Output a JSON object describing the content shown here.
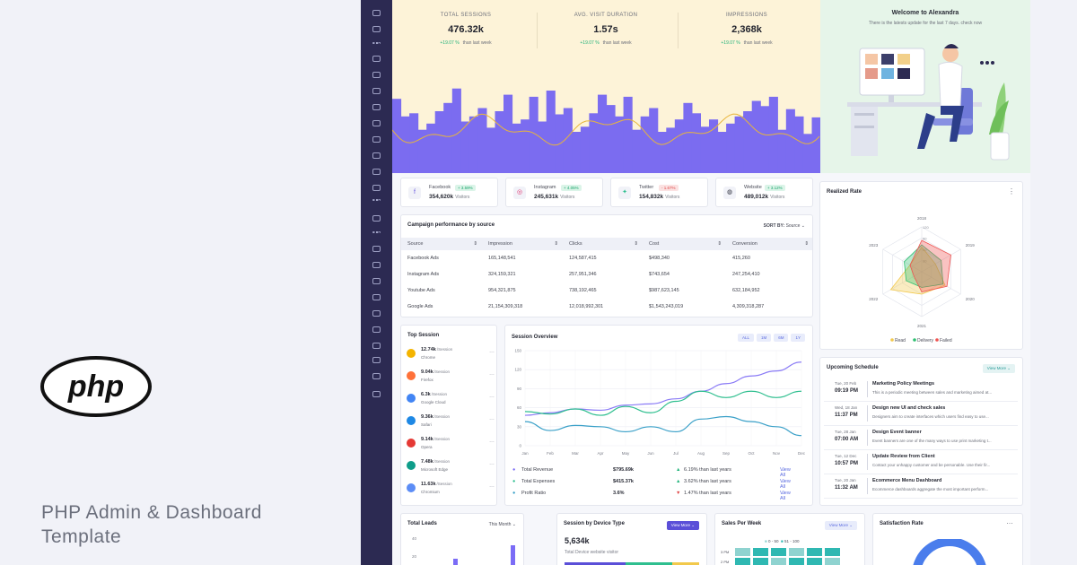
{
  "promo": {
    "title_line1": "PHP Admin & Dashboard",
    "title_line2": "Template",
    "logo_text": "php"
  },
  "stats": [
    {
      "label": "TOTAL SESSIONS",
      "value": "476.32k",
      "change": "+19.07 %",
      "period": "than last week"
    },
    {
      "label": "AVG. VISIT DURATION",
      "value": "1.57s",
      "change": "+19.07 %",
      "period": "than last week"
    },
    {
      "label": "IMPRESSIONS",
      "value": "2,368k",
      "change": "+19.07 %",
      "period": "than last week"
    }
  ],
  "hero_bars": [
    0.72,
    0.55,
    0.58,
    0.42,
    0.48,
    0.6,
    0.68,
    0.82,
    0.5,
    0.55,
    0.63,
    0.44,
    0.6,
    0.76,
    0.48,
    0.52,
    0.74,
    0.5,
    0.8,
    0.57,
    0.63,
    0.4,
    0.45,
    0.58,
    0.76,
    0.66,
    0.55,
    0.74,
    0.42,
    0.55,
    0.63,
    0.4,
    0.44,
    0.52,
    0.68,
    0.58,
    0.45,
    0.52,
    0.4,
    0.48,
    0.55,
    0.6,
    0.7,
    0.65,
    0.74,
    0.42,
    0.62,
    0.55,
    0.38,
    0.54
  ],
  "welcome": {
    "title": "Welcome to Alexandra",
    "subtitle": "There is the latests update for the last 7 days. check now"
  },
  "social": [
    {
      "name": "Facebook",
      "change": "+ 3.59%",
      "dir": "up",
      "value": "354,620k",
      "unit": "Visitors",
      "icon": "f"
    },
    {
      "name": "Instagram",
      "change": "+ 4.05%",
      "dir": "up",
      "value": "245,631k",
      "unit": "Visitors",
      "icon": "◎"
    },
    {
      "name": "Twitter",
      "change": "- 1.67%",
      "dir": "dn",
      "value": "154,832k",
      "unit": "Visitors",
      "icon": "✦"
    },
    {
      "name": "Website",
      "change": "+ 3.12%",
      "dir": "up",
      "value": "489,012k",
      "unit": "Visitors",
      "icon": "◍"
    }
  ],
  "campaign": {
    "title": "Campaign performance by source",
    "sort_label": "SORT BY:",
    "sort_value": "Source",
    "headers": [
      "Source",
      "Impression",
      "Clicks",
      "Cost",
      "Conversion"
    ],
    "rows": [
      [
        "Facebook Ads",
        "165,148,541",
        "124,587,415",
        "$498,340",
        "415,260"
      ],
      [
        "Instagram Ads",
        "324,159,321",
        "257,951,346",
        "$743,654",
        "247,254,410"
      ],
      [
        "Youtube Ads",
        "954,321,875",
        "738,192,465",
        "$987,623,145",
        "632,184,952"
      ],
      [
        "Google Ads",
        "21,154,309,318",
        "12,018,992,301",
        "$1,543,243,019",
        "4,309,318,287"
      ]
    ]
  },
  "realized": {
    "title": "Realized Rate",
    "axis_labels": [
      "2018",
      "2019",
      "2020",
      "2021",
      "2022",
      "2023"
    ],
    "ticks": [
      "120",
      "90",
      "60",
      "30"
    ],
    "legend": [
      "Read",
      "Delivery",
      "Failed"
    ],
    "colors": [
      "#f2c94c",
      "#2fbf71",
      "#ef5350"
    ]
  },
  "top_session": {
    "title": "Top Session",
    "items": [
      {
        "value": "12.74k",
        "unit": "/Session",
        "name": "Chrome",
        "color": "#f4b400"
      },
      {
        "value": "9.04k",
        "unit": "/Session",
        "name": "Firefox",
        "color": "#ff7139"
      },
      {
        "value": "6.3k",
        "unit": "/Session",
        "name": "Google Cloud",
        "color": "#4285f4"
      },
      {
        "value": "9.36k",
        "unit": "/Session",
        "name": "Safari",
        "color": "#1e88e5"
      },
      {
        "value": "9.14k",
        "unit": "/Session",
        "name": "Opera",
        "color": "#e53935"
      },
      {
        "value": "7.48k",
        "unit": "/Session",
        "name": "Microsoft Edge",
        "color": "#0f9d8a"
      },
      {
        "value": "11.63k",
        "unit": "/Session",
        "name": "Chromium",
        "color": "#5c8df6"
      }
    ]
  },
  "session_overview": {
    "title": "Session Overview",
    "filters": [
      "ALL",
      "1M",
      "6M",
      "1Y"
    ],
    "y_ticks": [
      "150",
      "120",
      "90",
      "60",
      "30",
      "0"
    ],
    "months": [
      "Jan",
      "Feb",
      "Mar",
      "Apr",
      "May",
      "Jun",
      "Jul",
      "Aug",
      "Sep",
      "Oct",
      "Nov",
      "Dec"
    ],
    "totals": [
      {
        "name": "Total Revenue",
        "color": "#7b6cf6",
        "value": "$795.69k",
        "change": "6.19% than last years",
        "dir": "up",
        "link": "View All"
      },
      {
        "name": "Total Expenses",
        "color": "#2fbf8f",
        "value": "$415.37k",
        "change": "3.62% than last years",
        "dir": "up",
        "link": "View All"
      },
      {
        "name": "Profit Ratio",
        "color": "#3aa0c8",
        "value": "3.6%",
        "change": "1.47% than last years",
        "dir": "dn",
        "link": "View All"
      }
    ]
  },
  "chart_data": {
    "type": "line",
    "x": [
      "Jan",
      "Feb",
      "Mar",
      "Apr",
      "May",
      "Jun",
      "Jul",
      "Aug",
      "Sep",
      "Oct",
      "Nov",
      "Dec"
    ],
    "ylim": [
      0,
      150
    ],
    "series": [
      {
        "values": [
          48,
          52,
          58,
          56,
          64,
          66,
          74,
          86,
          98,
          110,
          118,
          132
        ]
      },
      {
        "values": [
          54,
          50,
          58,
          48,
          62,
          52,
          70,
          86,
          76,
          86,
          76,
          86
        ]
      },
      {
        "values": [
          38,
          24,
          32,
          30,
          22,
          30,
          22,
          42,
          46,
          38,
          30,
          16
        ]
      }
    ],
    "colors": [
      "#8b7cf6",
      "#2fbf8f",
      "#3aa0c8"
    ]
  },
  "schedule": {
    "title": "Upcoming Schedule",
    "button": "View More",
    "items": [
      {
        "date": "Tue, 20 Feb",
        "time": "09:19 PM",
        "title": "Marketing Policy Meetings",
        "desc": "This is a periodic meeting between sales and marketing aimed at..."
      },
      {
        "date": "Wed, 18 Jan",
        "time": "11:37 PM",
        "title": "Design new UI and check sales",
        "desc": "Designers aim to create interfaces which users find easy to use..."
      },
      {
        "date": "Tue, 28 Jan",
        "time": "07:00 AM",
        "title": "Design Event banner",
        "desc": "Event banners are one of the many ways to use print marketing t..."
      },
      {
        "date": "Tue, 12 Dec",
        "time": "10:57 PM",
        "title": "Update Review from Client",
        "desc": "Contact your unhappy customer and be personable. Use their fir..."
      },
      {
        "date": "Tue, 20 Jan",
        "time": "11:32 AM",
        "title": "Ecommerce Menu Dashboard",
        "desc": "Ecommerce dashboards aggregate the most important perform..."
      }
    ]
  },
  "total_leads": {
    "title": "Total Leads",
    "filter": "This Month",
    "ticks": [
      "40",
      "20"
    ]
  },
  "device": {
    "title": "Session by Device Type",
    "button": "View More",
    "value": "5,634k",
    "caption": "Total Device website visitor"
  },
  "sales": {
    "title": "Sales Per Week",
    "button": "View More",
    "legend": [
      "0 - 50",
      "51 - 100"
    ],
    "rows": [
      "3 PM",
      "2 PM"
    ]
  },
  "satisfaction": {
    "title": "Satisfaction Rate"
  }
}
